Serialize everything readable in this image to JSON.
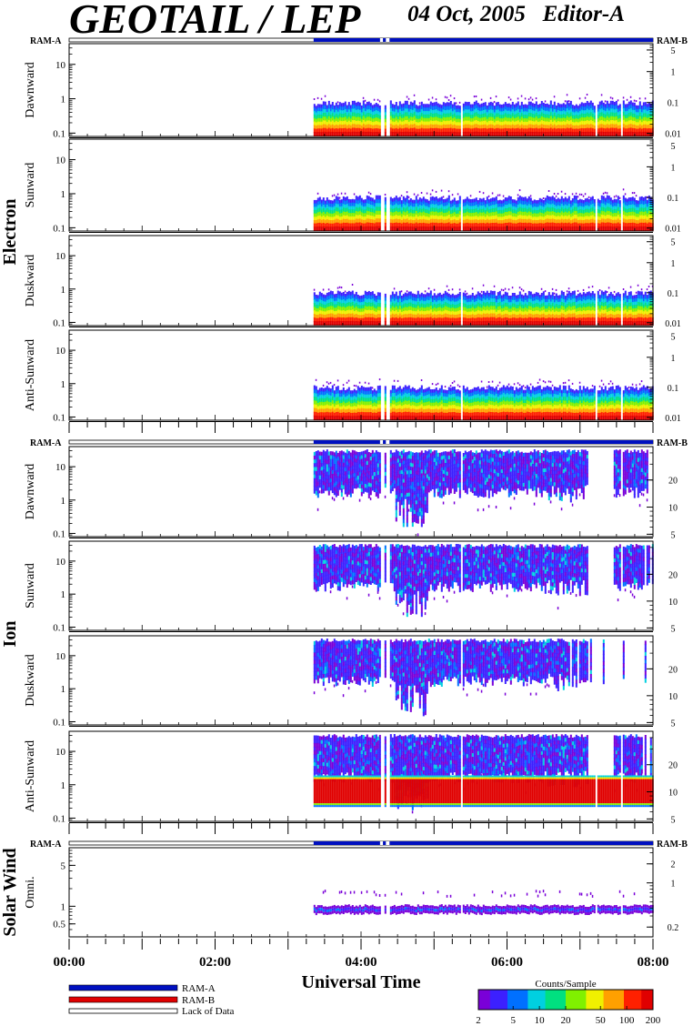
{
  "header": {
    "title": "GEOTAIL / LEP",
    "date": "04 Oct, 2005",
    "editor": "Editor-A"
  },
  "colors": {
    "ram_a": "#0010c0",
    "ram_b": "#e00000",
    "lack_of_data": "#ffffff",
    "colorbar": [
      "#7a00d8",
      "#3c20ff",
      "#0070ff",
      "#00d0e0",
      "#00e080",
      "#80f000",
      "#f0f000",
      "#ffa000",
      "#ff2000",
      "#e00000"
    ]
  },
  "legend": {
    "ram_a": "RAM-A",
    "ram_b": "RAM-B",
    "lack": "Lack of Data"
  },
  "colorbar": {
    "title": "Counts/Sample",
    "ticks": [
      "2",
      "5",
      "10",
      "20",
      "50",
      "100",
      "200"
    ],
    "tick_values": [
      2,
      5,
      10,
      20,
      50,
      100,
      200
    ]
  },
  "chart_data": {
    "type": "heatmap",
    "xlabel": "Universal Time",
    "x_ticks": [
      "00:00",
      "02:00",
      "04:00",
      "06:00",
      "08:00"
    ],
    "x_tick_hours": [
      0,
      2,
      4,
      6,
      8
    ],
    "xlim_hours": [
      0,
      8
    ],
    "data_start_hour": 3.35,
    "data_gaps_hours": [
      [
        4.26,
        4.3
      ],
      [
        4.34,
        4.39
      ],
      [
        5.35,
        5.37
      ],
      [
        7.2,
        7.22
      ],
      [
        7.55,
        7.57
      ]
    ],
    "groups": [
      {
        "name": "Electron",
        "ram_left": "RAM-A",
        "ram_right": "RAM-B",
        "left_ticks": [
          "10",
          "1",
          "0.1"
        ],
        "left_tick_values": [
          10,
          1,
          0.1
        ],
        "left_range": [
          0.08,
          40
        ],
        "right_ticks": [
          "5",
          "1",
          "0.1",
          "0.01"
        ],
        "right_tick_values": [
          5,
          1,
          0.1,
          0.01
        ],
        "right_range": [
          0.008,
          8
        ],
        "right_log": true,
        "panels": [
          {
            "label": "Dawnward"
          },
          {
            "label": "Sunward"
          },
          {
            "label": "Duskward"
          },
          {
            "label": "Anti-Sunward"
          }
        ]
      },
      {
        "name": "Ion",
        "ram_left": "RAM-A",
        "ram_right": "RAM-B",
        "left_ticks": [
          "10",
          "1",
          "0.1"
        ],
        "left_tick_values": [
          10,
          1,
          0.1
        ],
        "left_range": [
          0.08,
          40
        ],
        "right_ticks": [
          "20",
          "10",
          "5"
        ],
        "right_tick_values": [
          20,
          10,
          5
        ],
        "right_range": [
          4.7,
          47
        ],
        "right_log": false,
        "panels": [
          {
            "label": "Dawnward"
          },
          {
            "label": "Sunward"
          },
          {
            "label": "Duskward"
          },
          {
            "label": "Anti-Sunward"
          }
        ]
      },
      {
        "name": "Solar Wind",
        "ram_left": "RAM-A",
        "ram_right": "RAM-B",
        "left_ticks": [
          "5",
          "1",
          "0.5"
        ],
        "left_tick_values": [
          5,
          1,
          0.5
        ],
        "left_range": [
          0.3,
          10
        ],
        "right_ticks": [
          "2",
          "1",
          "0.2"
        ],
        "right_tick_values": [
          2,
          1,
          0.2
        ],
        "right_range": [
          0.14,
          3.6
        ],
        "right_log": true,
        "panels": [
          {
            "label": "Omni."
          }
        ]
      }
    ]
  }
}
